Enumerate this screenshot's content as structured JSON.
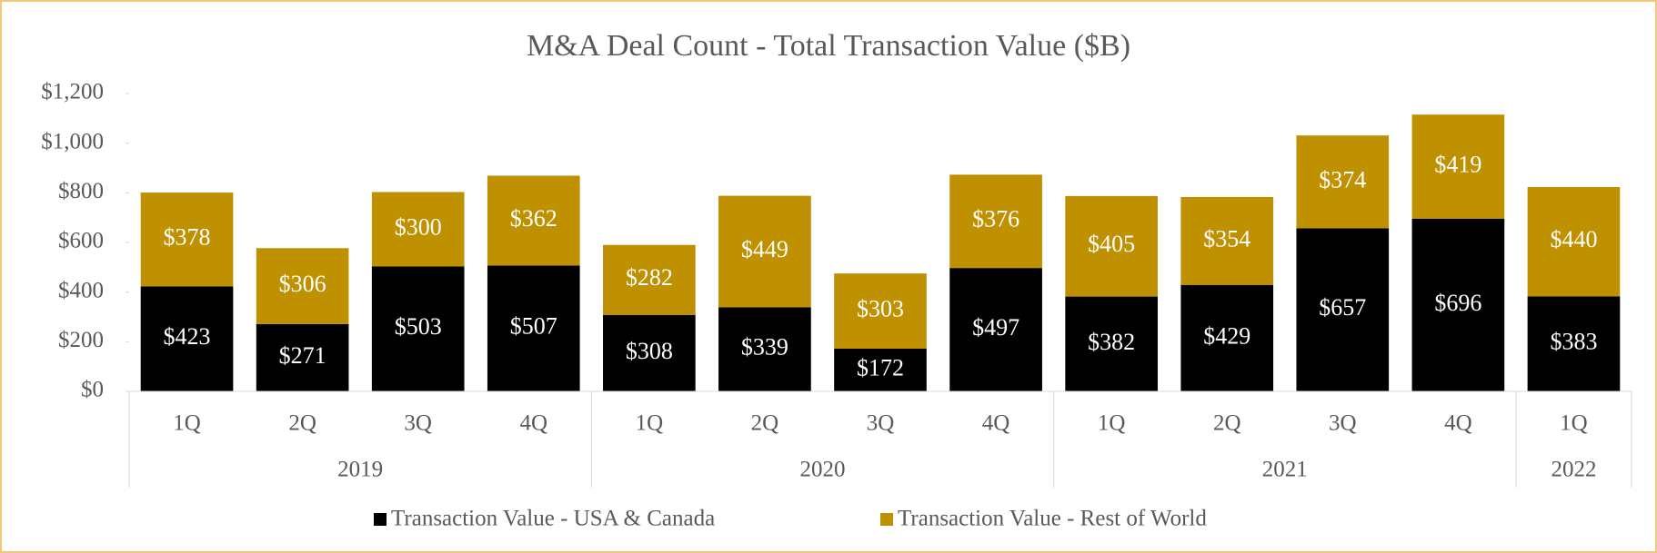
{
  "chart_data": {
    "type": "stacked_bar",
    "title": "M&A Deal Count - Total Transaction Value ($B)",
    "categories": [
      "1Q",
      "2Q",
      "3Q",
      "4Q",
      "1Q",
      "2Q",
      "3Q",
      "4Q",
      "1Q",
      "2Q",
      "3Q",
      "4Q",
      "1Q"
    ],
    "category_groups": [
      {
        "label": "2019",
        "span": 4
      },
      {
        "label": "2020",
        "span": 4
      },
      {
        "label": "2021",
        "span": 4
      },
      {
        "label": "2022",
        "span": 1
      }
    ],
    "series": [
      {
        "name": "Transaction Value - USA & Canada",
        "color": "#000000",
        "values": [
          423,
          271,
          503,
          507,
          308,
          339,
          172,
          497,
          382,
          429,
          657,
          696,
          383
        ],
        "value_labels": [
          "$423",
          "$271",
          "$503",
          "$507",
          "$308",
          "$339",
          "$172",
          "$497",
          "$382",
          "$429",
          "$657",
          "$696",
          "$383"
        ]
      },
      {
        "name": "Transaction Value - Rest of World",
        "color": "#bf9000",
        "values": [
          378,
          306,
          300,
          362,
          282,
          449,
          303,
          376,
          405,
          354,
          374,
          419,
          440
        ],
        "value_labels": [
          "$378",
          "$306",
          "$300",
          "$362",
          "$282",
          "$449",
          "$303",
          "$376",
          "$405",
          "$354",
          "$374",
          "$419",
          "$440"
        ]
      }
    ],
    "ylim": [
      0,
      1200
    ],
    "yticks": [
      {
        "value": 0,
        "label": "$0"
      },
      {
        "value": 200,
        "label": "$200"
      },
      {
        "value": 400,
        "label": "$400"
      },
      {
        "value": 600,
        "label": "$600"
      },
      {
        "value": 800,
        "label": "$800"
      },
      {
        "value": 1000,
        "label": "$1,000"
      },
      {
        "value": 1200,
        "label": "$1,200"
      }
    ],
    "legend": "bottom"
  }
}
